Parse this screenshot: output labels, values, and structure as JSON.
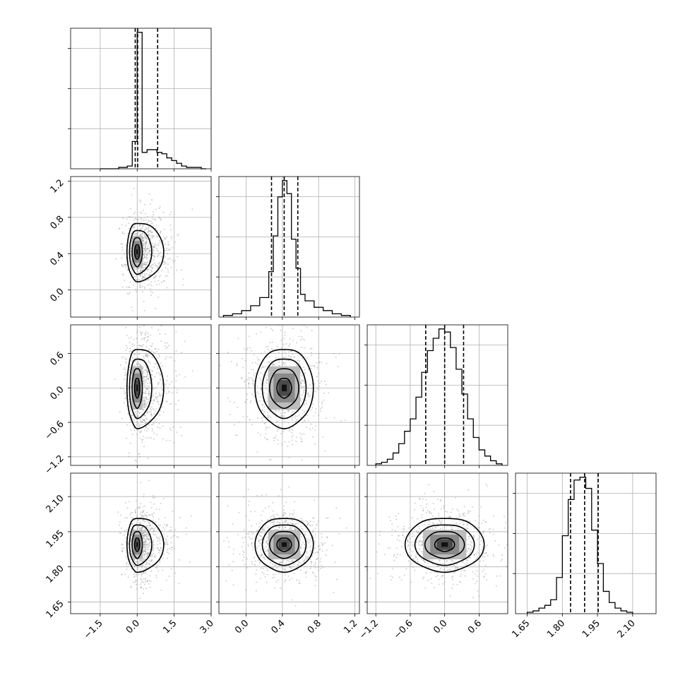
{
  "chart_data": {
    "type": "corner",
    "grid": true,
    "parameters": [
      {
        "range": [
          -2.7,
          3.0
        ],
        "ticks": [
          -1.5,
          0.0,
          1.5,
          3.0
        ],
        "tick_labels": [
          "−1.5",
          "0.0",
          "1.5",
          "3.0"
        ],
        "quantiles": [
          -0.08,
          0.02,
          0.83
        ],
        "hist": {
          "bins": [
            -1.5,
            -0.75,
            -0.4,
            -0.2,
            0.0,
            0.2,
            0.4,
            0.8,
            1.0,
            1.2,
            1.4,
            1.6,
            1.8,
            2.0,
            2.2,
            2.6,
            2.8
          ],
          "counts": [
            0,
            1,
            2,
            20,
            100,
            12,
            14,
            12,
            11,
            8,
            6,
            4,
            2,
            1,
            1,
            0
          ]
        }
      },
      {
        "range": [
          -0.3,
          1.25
        ],
        "ticks": [
          0.0,
          0.4,
          0.8,
          1.2
        ],
        "tick_labels": [
          "0.0",
          "0.4",
          "0.8",
          "1.2"
        ],
        "quantiles": [
          0.28,
          0.42,
          0.57
        ],
        "hist": {
          "bins": [
            -0.25,
            -0.15,
            -0.05,
            0.05,
            0.15,
            0.25,
            0.3,
            0.35,
            0.4,
            0.45,
            0.5,
            0.55,
            0.6,
            0.65,
            0.75,
            0.85,
            0.95,
            1.05,
            1.15
          ],
          "counts": [
            1,
            2,
            4,
            7,
            12,
            28,
            50,
            74,
            84,
            76,
            48,
            30,
            14,
            10,
            6,
            4,
            2,
            1
          ]
        }
      },
      {
        "range": [
          -1.35,
          1.1
        ],
        "ticks": [
          -1.2,
          -0.6,
          0.0,
          0.6
        ],
        "tick_labels": [
          "−1.2",
          "−0.6",
          "0.0",
          "0.6"
        ],
        "quantiles": [
          -0.33,
          0.0,
          0.33
        ],
        "hist": {
          "bins": [
            -1.2,
            -1.1,
            -1.0,
            -0.9,
            -0.8,
            -0.7,
            -0.6,
            -0.5,
            -0.4,
            -0.3,
            -0.2,
            -0.1,
            0.0,
            0.1,
            0.2,
            0.3,
            0.4,
            0.5,
            0.6,
            0.7,
            0.8,
            0.9,
            1.0
          ],
          "counts": [
            1,
            2,
            4,
            8,
            14,
            22,
            30,
            44,
            60,
            74,
            82,
            88,
            86,
            76,
            62,
            46,
            30,
            18,
            10,
            6,
            3,
            1
          ]
        }
      },
      {
        "range": [
          1.6,
          2.2
        ],
        "ticks": [
          1.65,
          1.8,
          1.95,
          2.1
        ],
        "tick_labels": [
          "1.65",
          "1.80",
          "1.95",
          "2.10"
        ],
        "quantiles": [
          1.835,
          1.895,
          1.953
        ],
        "hist": {
          "bins": [
            1.65,
            1.675,
            1.7,
            1.725,
            1.75,
            1.775,
            1.8,
            1.825,
            1.85,
            1.875,
            1.9,
            1.925,
            1.95,
            1.975,
            2.0,
            2.025,
            2.05,
            2.075,
            2.1
          ],
          "counts": [
            1,
            2,
            4,
            6,
            10,
            26,
            56,
            82,
            96,
            98,
            90,
            60,
            36,
            16,
            8,
            4,
            2,
            1
          ]
        }
      }
    ],
    "pairs": [
      {
        "row": 1,
        "col": 0,
        "center": [
          0.0,
          0.42
        ],
        "spread": [
          0.18,
          0.14
        ]
      },
      {
        "row": 2,
        "col": 0,
        "center": [
          0.0,
          0.0
        ],
        "spread": [
          0.18,
          0.3
        ]
      },
      {
        "row": 3,
        "col": 0,
        "center": [
          0.0,
          1.895
        ],
        "spread": [
          0.18,
          0.05
        ]
      },
      {
        "row": 2,
        "col": 1,
        "center": [
          0.42,
          0.0
        ],
        "spread": [
          0.14,
          0.3
        ]
      },
      {
        "row": 3,
        "col": 1,
        "center": [
          0.42,
          1.895
        ],
        "spread": [
          0.14,
          0.05
        ]
      },
      {
        "row": 3,
        "col": 2,
        "center": [
          0.0,
          1.895
        ],
        "spread": [
          0.3,
          0.05
        ]
      }
    ]
  }
}
